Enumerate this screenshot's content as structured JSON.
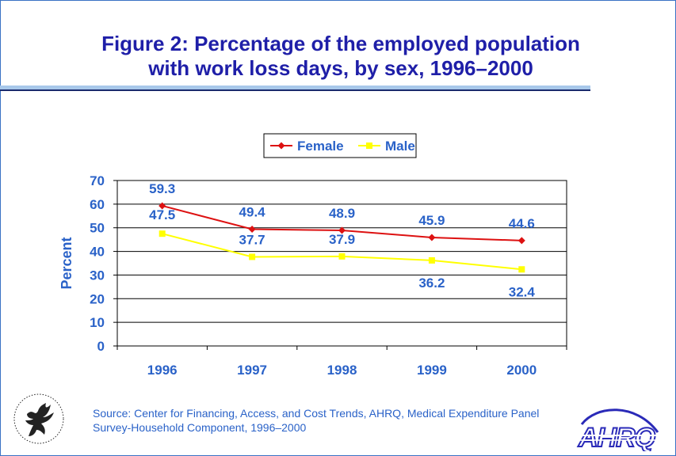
{
  "header": {
    "title_line1": "Figure 2: Percentage of the employed population",
    "title_line2": "with work loss days, by sex, 1996–2000"
  },
  "chart_data": {
    "type": "line",
    "x": [
      "1996",
      "1997",
      "1998",
      "1999",
      "2000"
    ],
    "ylabel": "Percent",
    "xlabel": "",
    "ylim": [
      0,
      70
    ],
    "yticks": [
      0,
      10,
      20,
      30,
      40,
      50,
      60,
      70
    ],
    "grid": true,
    "legend_position": "top",
    "series": [
      {
        "name": "Female",
        "values": [
          59.3,
          49.4,
          48.9,
          45.9,
          44.6
        ],
        "labels": [
          "59.3",
          "49.4",
          "48.9",
          "45.9",
          "44.6"
        ],
        "color": "#dd1111",
        "marker": "diamond"
      },
      {
        "name": "Male",
        "values": [
          47.5,
          37.7,
          37.9,
          36.2,
          32.4
        ],
        "labels": [
          "47.5",
          "37.7",
          "37.9",
          "36.2",
          "32.4"
        ],
        "color": "#ffff00",
        "marker": "square"
      }
    ]
  },
  "colors": {
    "text_blue": "#2a62c8",
    "title_navy": "#1f1fa8",
    "border": "#3a72c4"
  },
  "footer": {
    "source_line1": "Source: Center for Financing, Access, and Cost Trends, AHRQ, Medical Expenditure Panel",
    "source_line2": "Survey-Household Component, 1996–2000",
    "hhs_seal_icon": "hhs-eagle-seal-icon",
    "ahrq_logo_icon": "ahrq-logo-icon",
    "ahrq_logo_text": "AHRQ"
  }
}
